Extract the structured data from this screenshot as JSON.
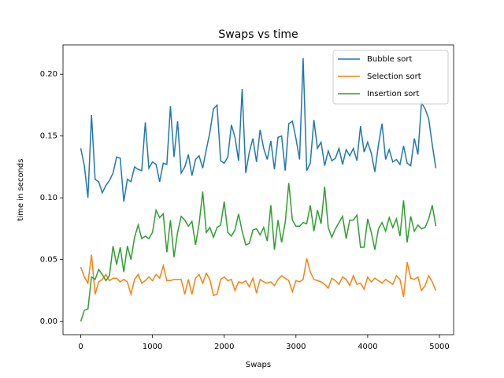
{
  "chart_data": {
    "type": "line",
    "title": "Swaps vs time",
    "xlabel": "Swaps",
    "ylabel": "time in seconds",
    "x": [
      0,
      50,
      100,
      150,
      200,
      250,
      300,
      350,
      400,
      450,
      500,
      550,
      600,
      650,
      700,
      750,
      800,
      850,
      900,
      950,
      1000,
      1050,
      1100,
      1150,
      1200,
      1250,
      1300,
      1350,
      1400,
      1450,
      1500,
      1550,
      1600,
      1650,
      1700,
      1750,
      1800,
      1850,
      1900,
      1950,
      2000,
      2050,
      2100,
      2150,
      2200,
      2250,
      2300,
      2350,
      2400,
      2450,
      2500,
      2550,
      2600,
      2650,
      2700,
      2750,
      2800,
      2850,
      2900,
      2950,
      3000,
      3050,
      3100,
      3150,
      3200,
      3250,
      3300,
      3350,
      3400,
      3450,
      3500,
      3550,
      3600,
      3650,
      3700,
      3750,
      3800,
      3850,
      3900,
      3950,
      4000,
      4050,
      4100,
      4150,
      4200,
      4250,
      4300,
      4350,
      4400,
      4450,
      4500,
      4550,
      4600,
      4650,
      4700,
      4750,
      4800,
      4850,
      4900,
      4950
    ],
    "series": [
      {
        "name": "Bubble sort",
        "color": "#1f77b4",
        "values": [
          0.14,
          0.126,
          0.1,
          0.167,
          0.115,
          0.113,
          0.104,
          0.11,
          0.114,
          0.12,
          0.133,
          0.132,
          0.097,
          0.115,
          0.113,
          0.125,
          0.123,
          0.122,
          0.161,
          0.124,
          0.129,
          0.127,
          0.113,
          0.128,
          0.127,
          0.174,
          0.133,
          0.162,
          0.12,
          0.125,
          0.135,
          0.118,
          0.131,
          0.134,
          0.124,
          0.139,
          0.153,
          0.172,
          0.175,
          0.13,
          0.128,
          0.133,
          0.159,
          0.149,
          0.13,
          0.188,
          0.12,
          0.137,
          0.148,
          0.129,
          0.155,
          0.14,
          0.131,
          0.146,
          0.123,
          0.149,
          0.15,
          0.122,
          0.16,
          0.162,
          0.148,
          0.131,
          0.213,
          0.122,
          0.128,
          0.163,
          0.14,
          0.145,
          0.126,
          0.138,
          0.13,
          0.132,
          0.14,
          0.127,
          0.139,
          0.134,
          0.14,
          0.13,
          0.158,
          0.137,
          0.145,
          0.136,
          0.121,
          0.143,
          0.16,
          0.131,
          0.139,
          0.129,
          0.131,
          0.127,
          0.142,
          0.128,
          0.126,
          0.148,
          0.135,
          0.177,
          0.172,
          0.164,
          0.143,
          0.124
        ]
      },
      {
        "name": "Selection sort",
        "color": "#ff7f0e",
        "values": [
          0.044,
          0.036,
          0.031,
          0.054,
          0.022,
          0.032,
          0.034,
          0.038,
          0.033,
          0.035,
          0.035,
          0.032,
          0.034,
          0.032,
          0.022,
          0.034,
          0.038,
          0.031,
          0.033,
          0.036,
          0.033,
          0.038,
          0.035,
          0.045,
          0.033,
          0.033,
          0.034,
          0.034,
          0.034,
          0.022,
          0.034,
          0.022,
          0.035,
          0.038,
          0.031,
          0.039,
          0.034,
          0.021,
          0.022,
          0.034,
          0.036,
          0.033,
          0.034,
          0.025,
          0.032,
          0.031,
          0.033,
          0.028,
          0.035,
          0.023,
          0.034,
          0.032,
          0.031,
          0.032,
          0.029,
          0.034,
          0.037,
          0.035,
          0.033,
          0.024,
          0.033,
          0.032,
          0.034,
          0.051,
          0.04,
          0.034,
          0.033,
          0.032,
          0.03,
          0.027,
          0.035,
          0.033,
          0.03,
          0.036,
          0.034,
          0.029,
          0.037,
          0.03,
          0.031,
          0.026,
          0.036,
          0.032,
          0.035,
          0.033,
          0.031,
          0.034,
          0.032,
          0.03,
          0.037,
          0.034,
          0.02,
          0.048,
          0.035,
          0.034,
          0.036,
          0.025,
          0.029,
          0.037,
          0.032,
          0.025
        ]
      },
      {
        "name": "Insertion sort",
        "color": "#2ca02c",
        "values": [
          0.0,
          0.009,
          0.01,
          0.036,
          0.034,
          0.042,
          0.038,
          0.033,
          0.037,
          0.061,
          0.046,
          0.06,
          0.04,
          0.061,
          0.05,
          0.068,
          0.078,
          0.067,
          0.069,
          0.067,
          0.072,
          0.09,
          0.084,
          0.087,
          0.056,
          0.082,
          0.052,
          0.072,
          0.085,
          0.082,
          0.077,
          0.081,
          0.062,
          0.079,
          0.105,
          0.072,
          0.076,
          0.068,
          0.076,
          0.078,
          0.097,
          0.072,
          0.069,
          0.074,
          0.087,
          0.073,
          0.062,
          0.063,
          0.074,
          0.075,
          0.07,
          0.076,
          0.065,
          0.094,
          0.058,
          0.082,
          0.064,
          0.08,
          0.112,
          0.082,
          0.077,
          0.077,
          0.08,
          0.079,
          0.094,
          0.073,
          0.09,
          0.079,
          0.109,
          0.076,
          0.068,
          0.075,
          0.08,
          0.085,
          0.067,
          0.082,
          0.082,
          0.086,
          0.06,
          0.06,
          0.083,
          0.072,
          0.058,
          0.075,
          0.08,
          0.073,
          0.084,
          0.076,
          0.083,
          0.069,
          0.098,
          0.064,
          0.085,
          0.073,
          0.078,
          0.075,
          0.076,
          0.083,
          0.094,
          0.077
        ]
      }
    ],
    "xlim": [
      -247.5,
      5197.5
    ],
    "ylim": [
      -0.0107,
      0.2237
    ],
    "xticks": [
      0,
      1000,
      2000,
      3000,
      4000,
      5000
    ],
    "yticks": [
      {
        "value": 0,
        "label": "0.00"
      },
      0.05,
      {
        "value": 0.1,
        "label": "0.10"
      },
      0.15,
      {
        "value": 0.2,
        "label": "0.20"
      }
    ],
    "legend": "upper right"
  }
}
